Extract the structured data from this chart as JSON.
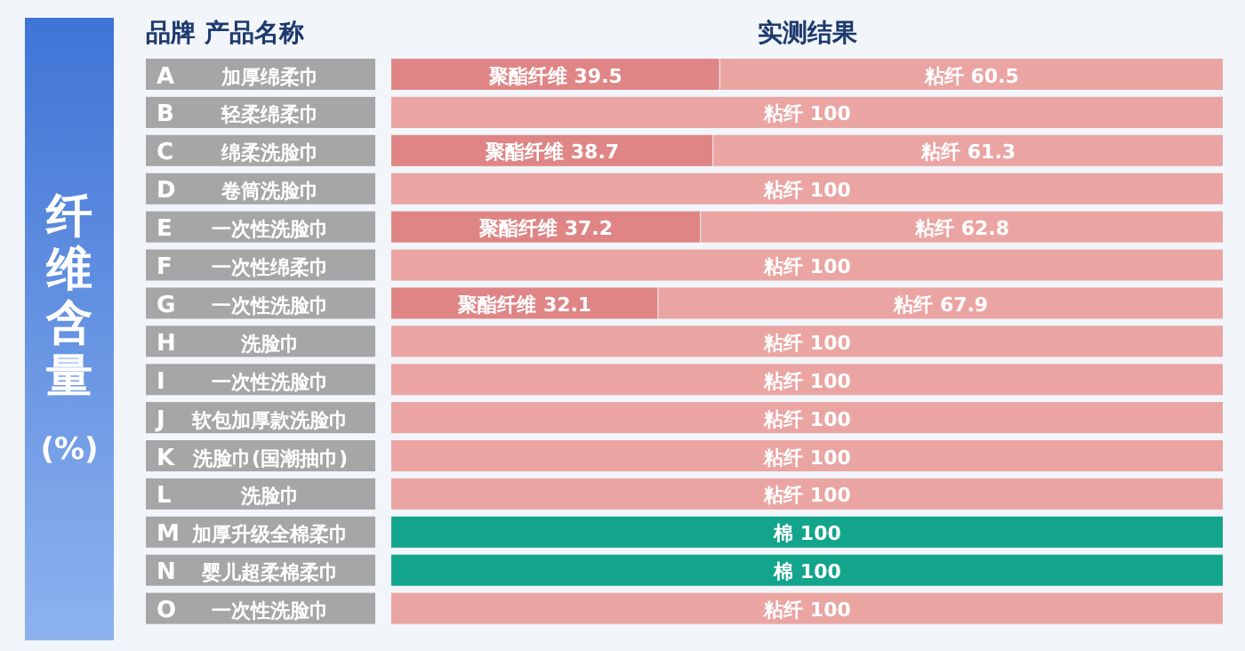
{
  "chart_data": {
    "type": "bar",
    "orientation": "horizontal",
    "stacked": true,
    "title": "实测结果",
    "ylabel": "纤维含量(%)",
    "annotations": [
      "品牌  产品名称"
    ],
    "categories": [
      "A 加厚绵柔巾",
      "B 轻柔绵柔巾",
      "C 绵柔洗脸巾",
      "D 卷筒洗脸巾",
      "E 一次性洗脸巾",
      "F 一次性绵柔巾",
      "G 一次性洗脸巾",
      "H 洗脸巾",
      "I 一次性洗脸巾",
      "J 软包加厚款洗脸巾",
      "K 洗脸巾(国潮抽巾)",
      "L 洗脸巾",
      "M 加厚升级全棉柔巾",
      "N 婴儿超柔棉柔巾",
      "O 一次性洗脸巾"
    ],
    "series": [
      {
        "color": "#df8585",
        "values": [
          39.5,
          null,
          38.7,
          null,
          37.2,
          null,
          32.1,
          null,
          null,
          null,
          null,
          null,
          null,
          null,
          null
        ],
        "value_labels": [
          "聚酯纤维 39.5",
          null,
          "聚酯纤维 38.7",
          null,
          "聚酯纤维 37.2",
          null,
          "聚酯纤维 32.1",
          null,
          null,
          null,
          null,
          null,
          null,
          null,
          null
        ]
      },
      {
        "color": "#eaa5a3",
        "values": [
          60.5,
          100,
          61.3,
          100,
          62.8,
          100,
          67.9,
          100,
          100,
          100,
          100,
          100,
          null,
          null,
          100
        ],
        "value_labels": [
          "粘纤 60.5",
          "粘纤 100",
          "粘纤 61.3",
          "粘纤 100",
          "粘纤 62.8",
          "粘纤 100",
          "粘纤 67.9",
          "粘纤 100",
          "粘纤 100",
          "粘纤 100",
          "粘纤 100",
          "粘纤 100",
          null,
          null,
          "粘纤 100"
        ]
      },
      {
        "color": "#12a58c",
        "values": [
          null,
          null,
          null,
          null,
          null,
          null,
          null,
          null,
          null,
          null,
          null,
          null,
          100,
          100,
          null
        ],
        "value_labels": [
          null,
          null,
          null,
          null,
          null,
          null,
          null,
          null,
          null,
          null,
          null,
          null,
          "棉 100",
          "棉 100",
          null
        ]
      }
    ]
  }
}
